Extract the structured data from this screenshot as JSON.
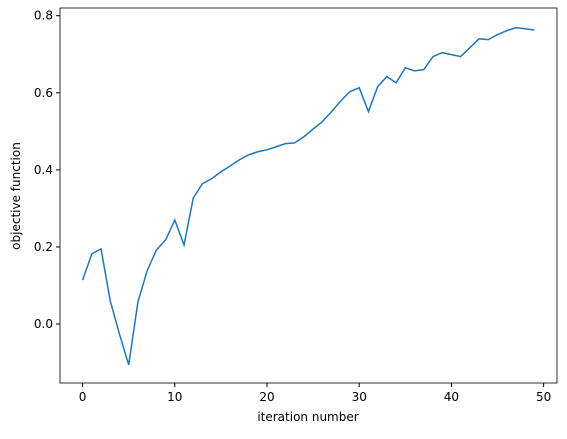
{
  "chart_data": {
    "type": "line",
    "xlabel": "iteration number",
    "ylabel": "objective function",
    "x": [
      0,
      1,
      2,
      3,
      4,
      5,
      6,
      7,
      8,
      9,
      10,
      11,
      12,
      13,
      14,
      15,
      16,
      17,
      18,
      19,
      20,
      21,
      22,
      23,
      24,
      25,
      26,
      27,
      28,
      29,
      30,
      31,
      32,
      33,
      34,
      35,
      36,
      37,
      38,
      39,
      40,
      41,
      42,
      43,
      44,
      45,
      46,
      47,
      48,
      49
    ],
    "series": [
      {
        "name": "objective",
        "color": "#1f77b4",
        "values": [
          0.114,
          0.182,
          0.195,
          0.06,
          -0.026,
          -0.106,
          0.057,
          0.138,
          0.192,
          0.218,
          0.27,
          0.205,
          0.327,
          0.364,
          0.377,
          0.395,
          0.41,
          0.426,
          0.439,
          0.447,
          0.452,
          0.46,
          0.468,
          0.47,
          0.486,
          0.506,
          0.525,
          0.551,
          0.579,
          0.603,
          0.613,
          0.551,
          0.616,
          0.642,
          0.626,
          0.665,
          0.657,
          0.66,
          0.694,
          0.704,
          0.699,
          0.694,
          0.717,
          0.74,
          0.738,
          0.751,
          0.761,
          0.769,
          0.766,
          0.763
        ]
      }
    ],
    "xlim": [
      -2.45,
      51.45
    ],
    "ylim": [
      -0.153,
      0.82
    ],
    "xticks": [
      0,
      10,
      20,
      30,
      40,
      50
    ],
    "yticks": [
      {
        "value": 0,
        "label": "0.0"
      },
      0.2,
      0.4,
      0.6,
      0.8
    ]
  }
}
